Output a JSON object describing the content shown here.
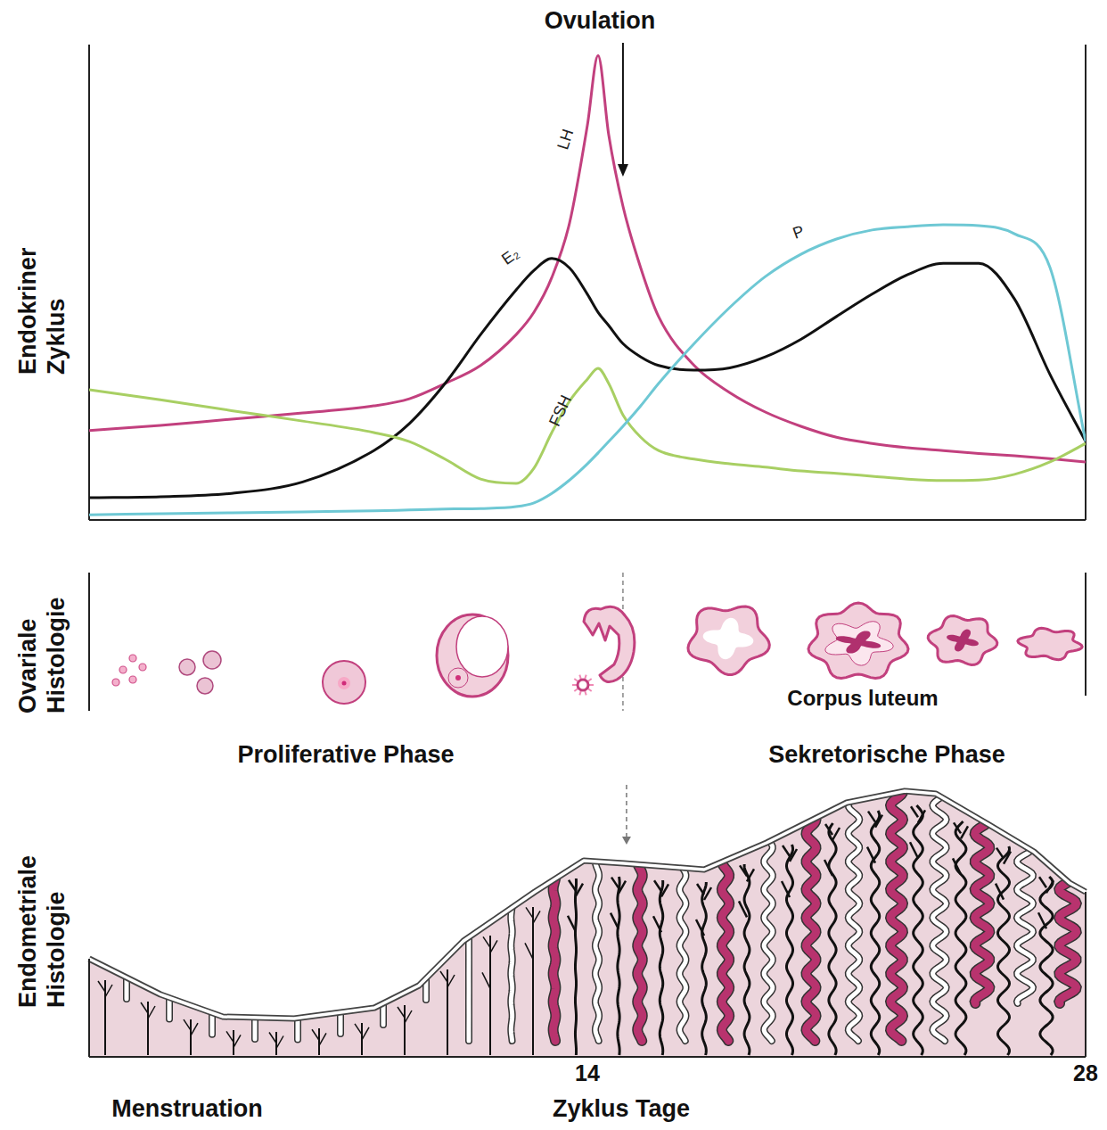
{
  "chart_data": {
    "type": "line",
    "y_label": "Endokriner Zyklus",
    "x_label": "Zyklus Tage",
    "xlim": [
      0,
      28
    ],
    "xticks": [
      14,
      28
    ],
    "ylim": [
      0,
      100
    ],
    "tick_labels": "x",
    "x": [
      0,
      2,
      4,
      6,
      8,
      9,
      10,
      11,
      12,
      12.5,
      13,
      13.5,
      14,
      14.3,
      14.6,
      15,
      15.5,
      16,
      17,
      18,
      19,
      20,
      21,
      22,
      23,
      24,
      25,
      26,
      27,
      28
    ],
    "series": [
      {
        "name": "LH",
        "color": "#c2407e",
        "values": [
          18.8,
          19.9,
          21.2,
          22.5,
          24,
          25.5,
          28.7,
          32.5,
          39,
          43.7,
          51,
          62.5,
          83,
          97.7,
          81,
          66,
          53,
          42.8,
          32.5,
          26.8,
          22.7,
          19.7,
          17.4,
          16.1,
          15.2,
          14.6,
          14,
          13.5,
          12.9,
          12.2
        ]
      },
      {
        "name": "E₂",
        "color": "#111111",
        "values": [
          4.7,
          4.9,
          5.6,
          8,
          14.6,
          20.3,
          28.7,
          39,
          48.4,
          52.5,
          55,
          53,
          47.5,
          43.7,
          40.9,
          37.1,
          34.3,
          32.5,
          31.5,
          32,
          34.3,
          38,
          42.8,
          47.5,
          51.6,
          54,
          54,
          46.5,
          30.6,
          16.5
        ]
      },
      {
        "name": "FSH",
        "color": "#a8cf63",
        "values": [
          27.4,
          25.3,
          23,
          20.8,
          18.4,
          16.5,
          12.8,
          8.6,
          7.7,
          10.9,
          18.4,
          25,
          29.6,
          31.9,
          28.7,
          22.1,
          17.4,
          14.6,
          12.8,
          11.8,
          11.1,
          10.3,
          9.8,
          9.2,
          8.6,
          8.3,
          8.4,
          9.6,
          12.2,
          16.1
        ]
      },
      {
        "name": "P",
        "color": "#6ec8d4",
        "values": [
          1.1,
          1.3,
          1.5,
          1.7,
          1.9,
          2.1,
          2.3,
          2.4,
          2.8,
          3.6,
          5.6,
          8.4,
          11.8,
          14.1,
          16.5,
          19.7,
          24,
          28.7,
          37.1,
          44.7,
          51.2,
          55.9,
          59.1,
          61,
          61.7,
          62.1,
          61.9,
          60.2,
          53.1,
          16.5
        ]
      }
    ],
    "annotations": [
      {
        "text": "Ovulation",
        "x": 15
      }
    ],
    "panels": [
      {
        "label": "Ovariale Histologie",
        "text": "Corpus luteum"
      },
      {
        "label": "Endometriale Histologie",
        "phases": [
          "Menstruation",
          "Proliferative Phase",
          "Sekretorische Phase"
        ]
      }
    ]
  }
}
